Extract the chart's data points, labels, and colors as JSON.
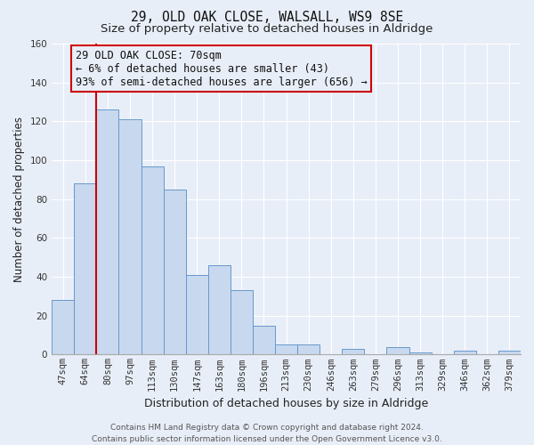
{
  "title": "29, OLD OAK CLOSE, WALSALL, WS9 8SE",
  "subtitle": "Size of property relative to detached houses in Aldridge",
  "xlabel": "Distribution of detached houses by size in Aldridge",
  "ylabel": "Number of detached properties",
  "bar_labels": [
    "47sqm",
    "64sqm",
    "80sqm",
    "97sqm",
    "113sqm",
    "130sqm",
    "147sqm",
    "163sqm",
    "180sqm",
    "196sqm",
    "213sqm",
    "230sqm",
    "246sqm",
    "263sqm",
    "279sqm",
    "296sqm",
    "313sqm",
    "329sqm",
    "346sqm",
    "362sqm",
    "379sqm"
  ],
  "bar_values": [
    28,
    88,
    126,
    121,
    97,
    85,
    41,
    46,
    33,
    15,
    5,
    5,
    0,
    3,
    0,
    4,
    1,
    0,
    2,
    0,
    2
  ],
  "bar_color": "#c8d8ee",
  "bar_edge_color": "#6699cc",
  "vline_color": "#cc0000",
  "annotation_line1": "29 OLD OAK CLOSE: 70sqm",
  "annotation_line2": "← 6% of detached houses are smaller (43)",
  "annotation_line3": "93% of semi-detached houses are larger (656) →",
  "ylim": [
    0,
    160
  ],
  "yticks": [
    0,
    20,
    40,
    60,
    80,
    100,
    120,
    140,
    160
  ],
  "footer_line1": "Contains HM Land Registry data © Crown copyright and database right 2024.",
  "footer_line2": "Contains public sector information licensed under the Open Government Licence v3.0.",
  "bg_color": "#e8eef8",
  "grid_color": "#ffffff",
  "title_fontsize": 10.5,
  "subtitle_fontsize": 9.5,
  "xlabel_fontsize": 9,
  "ylabel_fontsize": 8.5,
  "tick_fontsize": 7.5,
  "annotation_fontsize": 8.5,
  "footer_fontsize": 6.5
}
